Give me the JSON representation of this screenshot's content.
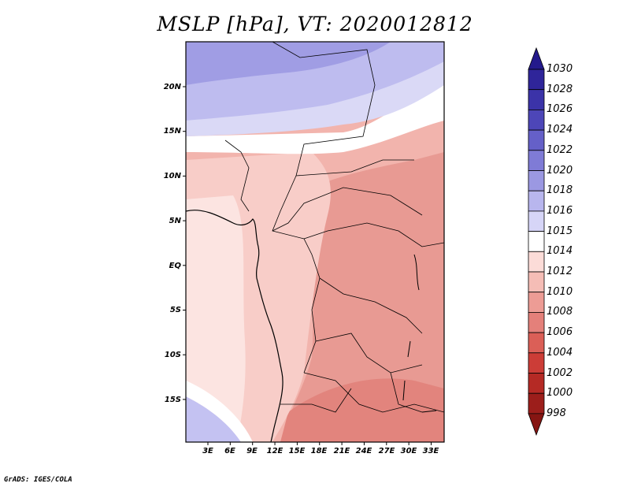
{
  "title": "MSLP [hPa], VT: 2020012812",
  "credit": "GrADS: IGES/COLA",
  "lat_ticks": [
    "20N",
    "15N",
    "10N",
    "5N",
    "EQ",
    "5S",
    "10S",
    "15S"
  ],
  "lon_ticks": [
    "3E",
    "6E",
    "9E",
    "12E",
    "15E",
    "18E",
    "21E",
    "24E",
    "27E",
    "30E",
    "33E"
  ],
  "colorbar": {
    "labels": [
      "1030",
      "1028",
      "1026",
      "1024",
      "1022",
      "1020",
      "1018",
      "1016",
      "1015",
      "1014",
      "1012",
      "1010",
      "1008",
      "1006",
      "1004",
      "1002",
      "1000",
      "998"
    ],
    "colors": [
      "#241a8c",
      "#2f259a",
      "#3b33a8",
      "#4d46b8",
      "#6560c8",
      "#7f7bd6",
      "#9b98e2",
      "#b8b6ee",
      "#d6d5f7",
      "#ffffff",
      "#fcdcd8",
      "#f5bdb6",
      "#ed9c95",
      "#e4807a",
      "#db5f57",
      "#cc3d37",
      "#b52a25",
      "#9c1e1b",
      "#861512"
    ]
  },
  "colors": {
    "background": "#ffffff",
    "axis": "#000000",
    "border": "#000000"
  }
}
